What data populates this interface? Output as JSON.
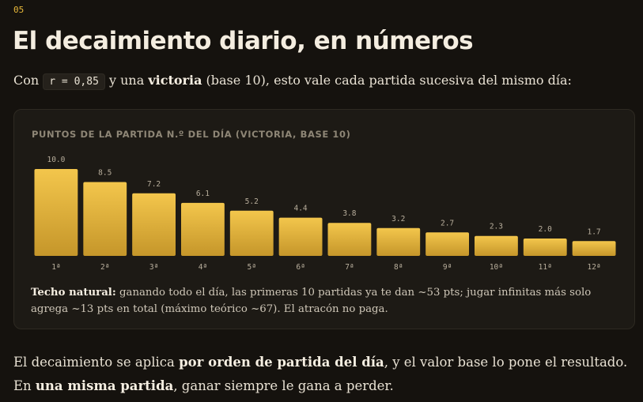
{
  "section_number": "05",
  "title": "El decaimiento diario, en números",
  "intro": {
    "before": "Con",
    "code": "r = 0,85",
    "middle": "y una",
    "bold": "victoria",
    "after": "(base 10), esto vale cada partida sucesiva del mismo día:"
  },
  "chart_data": {
    "type": "bar",
    "title": "PUNTOS DE LA PARTIDA N.º DEL DÍA (VICTORIA, BASE 10)",
    "categories": [
      "1ª",
      "2ª",
      "3ª",
      "4ª",
      "5ª",
      "6ª",
      "7ª",
      "8ª",
      "9ª",
      "10ª",
      "11ª",
      "12ª"
    ],
    "values": [
      10,
      8.5,
      7.2,
      6.1,
      5.2,
      4.4,
      3.8,
      3.2,
      2.7,
      2.3,
      2.0,
      1.7
    ],
    "value_labels": [
      "10.0",
      "8.5",
      "7.2",
      "6.1",
      "5.2",
      "4.4",
      "3.8",
      "3.2",
      "2.7",
      "2.3",
      "2.0",
      "1.7"
    ],
    "color": "#e8b83a"
  },
  "note": {
    "bold": "Techo natural:",
    "text": "ganando todo el día, las primeras 10 partidas ya te dan ~53 pts; jugar infinitas más solo agrega ~13 pts en total (máximo teórico ~67). El atracón no paga."
  },
  "outro": {
    "part1": "El decaimiento se aplica",
    "bold1": "por orden de partida del día",
    "part2": ", y el valor base lo pone el resultado. En",
    "bold2": "una misma partida",
    "part3": ", ganar siempre le gana a perder."
  }
}
